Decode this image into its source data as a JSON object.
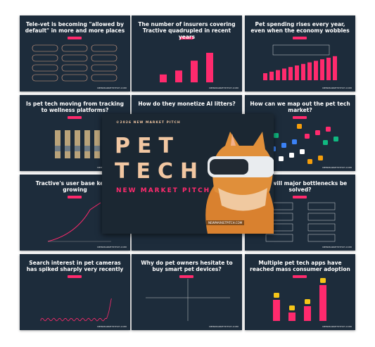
{
  "slides": [
    {
      "title": "Tele-vet is becoming \"allowed by default\" in more and more places"
    },
    {
      "title": "The number of insurers covering Tractive quadrupled in recent years"
    },
    {
      "title": "Pet spending rises every year, even when the economy wobbles"
    },
    {
      "title": "Is pet tech moving from tracking to wellness platforms?"
    },
    {
      "title": "How do they monetize AI litters?"
    },
    {
      "title": "How can we map out the pet tech market?"
    },
    {
      "title": "Tractive's user base keeps growing"
    },
    {
      "title": "When will major bottlenecks be solved?"
    },
    {
      "title": "Search interest in pet cameras has spiked sharply very recently"
    },
    {
      "title": "Why do pet owners hesitate to buy smart pet devices?"
    },
    {
      "title": "Multiple pet tech apps have reached mass consumer adoption"
    }
  ],
  "footer": "NEWMARKETPITCH.COM",
  "cover": {
    "kicker": "©2026 NEW MARKET PITCH",
    "line1": "PET",
    "line2": "TECH",
    "subtitle": "NEW MARKET PITCH",
    "url": "NEWMARKETPITCH.COM"
  }
}
